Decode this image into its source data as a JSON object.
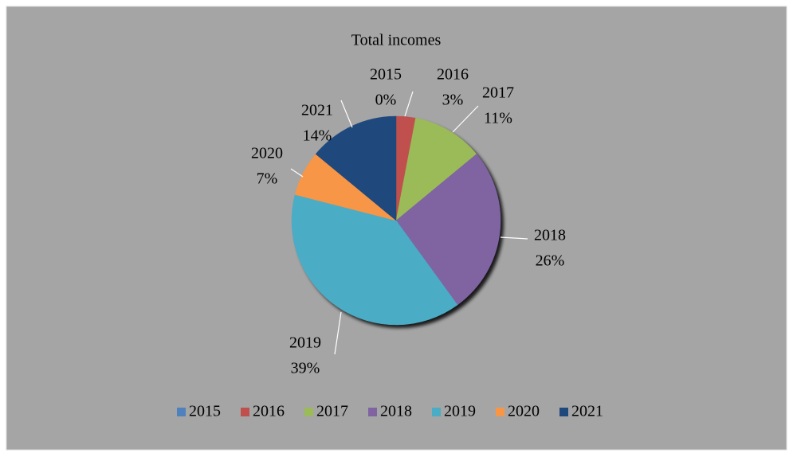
{
  "chart_data": {
    "type": "pie",
    "title": "Total incomes",
    "categories": [
      "2015",
      "2016",
      "2017",
      "2018",
      "2019",
      "2020",
      "2021"
    ],
    "values": [
      0,
      3,
      11,
      26,
      39,
      7,
      14
    ],
    "value_labels": [
      "0%",
      "3%",
      "11%",
      "26%",
      "39%",
      "7%",
      "14%"
    ],
    "colors": [
      "#4f81bd",
      "#c0504d",
      "#9bbb59",
      "#8064a2",
      "#4bacc6",
      "#f79646",
      "#1f497d"
    ],
    "legend": "bottom"
  }
}
